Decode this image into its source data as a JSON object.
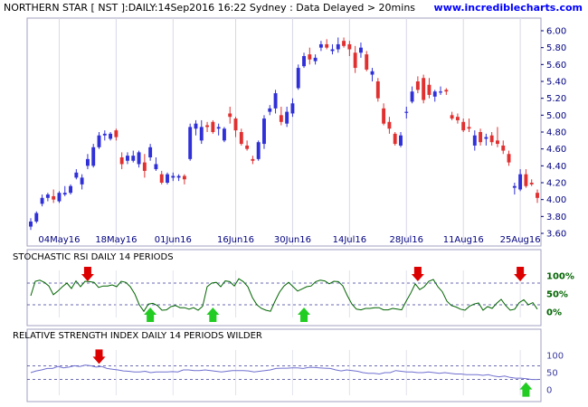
{
  "header": {
    "title": "NORTHERN STAR [ NST ]:DAILY:14Sep2016 16:22 Sydney : Data Delayed > 20mins",
    "site": "www.incrediblecharts.com"
  },
  "colors": {
    "up": "#3030d8",
    "down": "#e03030",
    "stochastic": "#006400",
    "rsi": "#7070d0",
    "buy_arrow": "#22cc22",
    "sell_arrow": "#dd0000"
  },
  "chart_data": [
    {
      "type": "candlestick",
      "title": "",
      "ylim": [
        3.45,
        6.15
      ],
      "y_ticks": [
        "6.00",
        "5.80",
        "5.60",
        "5.40",
        "5.20",
        "5.00",
        "4.80",
        "4.60",
        "4.40",
        "4.20",
        "4.00",
        "3.80",
        "3.60"
      ],
      "x_ticks": [
        "04May16",
        "18May16",
        "01Jun16",
        "16Jun16",
        "30Jun16",
        "14Jul16",
        "28Jul16",
        "11Aug16",
        "25Aug16"
      ],
      "x_tick_index": [
        5,
        15,
        25,
        36,
        46,
        56,
        66,
        76,
        86
      ],
      "ohlc": [
        [
          3.68,
          3.78,
          3.64,
          3.74
        ],
        [
          3.74,
          3.86,
          3.72,
          3.84
        ],
        [
          3.95,
          4.06,
          3.92,
          4.02
        ],
        [
          4.02,
          4.08,
          3.98,
          4.06
        ],
        [
          4.04,
          4.12,
          3.96,
          4.0
        ],
        [
          3.98,
          4.1,
          3.96,
          4.08
        ],
        [
          4.06,
          4.16,
          4.04,
          4.08
        ],
        [
          4.08,
          4.18,
          4.06,
          4.16
        ],
        [
          4.26,
          4.36,
          4.24,
          4.32
        ],
        [
          4.18,
          4.3,
          4.12,
          4.26
        ],
        [
          4.4,
          4.54,
          4.36,
          4.48
        ],
        [
          4.4,
          4.66,
          4.38,
          4.62
        ],
        [
          4.62,
          4.8,
          4.6,
          4.76
        ],
        [
          4.76,
          4.82,
          4.7,
          4.78
        ],
        [
          4.72,
          4.8,
          4.7,
          4.78
        ],
        [
          4.82,
          4.84,
          4.7,
          4.74
        ],
        [
          4.5,
          4.56,
          4.36,
          4.42
        ],
        [
          4.46,
          4.56,
          4.42,
          4.52
        ],
        [
          4.46,
          4.58,
          4.44,
          4.52
        ],
        [
          4.42,
          4.58,
          4.38,
          4.56
        ],
        [
          4.44,
          4.54,
          4.26,
          4.34
        ],
        [
          4.5,
          4.66,
          4.46,
          4.62
        ],
        [
          4.36,
          4.5,
          4.34,
          4.42
        ],
        [
          4.3,
          4.34,
          4.18,
          4.2
        ],
        [
          4.2,
          4.32,
          4.18,
          4.3
        ],
        [
          4.26,
          4.32,
          4.22,
          4.28
        ],
        [
          4.26,
          4.3,
          4.22,
          4.28
        ],
        [
          4.28,
          4.3,
          4.18,
          4.24
        ],
        [
          4.48,
          4.9,
          4.46,
          4.86
        ],
        [
          4.84,
          4.94,
          4.76,
          4.9
        ],
        [
          4.7,
          4.94,
          4.66,
          4.86
        ],
        [
          4.88,
          4.92,
          4.8,
          4.86
        ],
        [
          4.92,
          4.94,
          4.78,
          4.8
        ],
        [
          4.84,
          4.9,
          4.76,
          4.86
        ],
        [
          4.7,
          4.86,
          4.68,
          4.84
        ],
        [
          5.02,
          5.1,
          4.9,
          4.98
        ],
        [
          4.96,
          4.98,
          4.74,
          4.82
        ],
        [
          4.8,
          4.84,
          4.64,
          4.66
        ],
        [
          4.64,
          4.7,
          4.58,
          4.6
        ],
        [
          4.48,
          4.52,
          4.42,
          4.46
        ],
        [
          4.48,
          4.7,
          4.46,
          4.68
        ],
        [
          4.66,
          5.0,
          4.6,
          4.96
        ],
        [
          5.04,
          5.12,
          5.0,
          5.08
        ],
        [
          5.08,
          5.3,
          5.02,
          5.26
        ],
        [
          5.0,
          5.1,
          4.88,
          4.92
        ],
        [
          4.9,
          5.1,
          4.86,
          5.04
        ],
        [
          5.02,
          5.2,
          4.98,
          5.14
        ],
        [
          5.32,
          5.6,
          5.3,
          5.56
        ],
        [
          5.58,
          5.74,
          5.56,
          5.7
        ],
        [
          5.72,
          5.8,
          5.6,
          5.66
        ],
        [
          5.64,
          5.72,
          5.6,
          5.68
        ],
        [
          5.8,
          5.88,
          5.76,
          5.84
        ],
        [
          5.84,
          5.9,
          5.78,
          5.8
        ],
        [
          5.76,
          5.84,
          5.72,
          5.78
        ],
        [
          5.78,
          5.92,
          5.74,
          5.84
        ],
        [
          5.88,
          5.92,
          5.8,
          5.82
        ],
        [
          5.84,
          5.88,
          5.7,
          5.78
        ],
        [
          5.74,
          5.82,
          5.5,
          5.56
        ],
        [
          5.74,
          5.86,
          5.68,
          5.8
        ],
        [
          5.72,
          5.76,
          5.52,
          5.54
        ],
        [
          5.48,
          5.56,
          5.4,
          5.52
        ],
        [
          5.4,
          5.44,
          5.16,
          5.2
        ],
        [
          5.08,
          5.14,
          4.88,
          4.9
        ],
        [
          4.92,
          4.98,
          4.78,
          4.84
        ],
        [
          4.78,
          4.8,
          4.64,
          4.66
        ],
        [
          4.64,
          4.8,
          4.62,
          4.76
        ],
        [
          5.04,
          5.1,
          4.96,
          5.04
        ],
        [
          5.16,
          5.34,
          5.14,
          5.28
        ],
        [
          5.4,
          5.46,
          5.26,
          5.3
        ],
        [
          5.44,
          5.48,
          5.14,
          5.18
        ],
        [
          5.36,
          5.44,
          5.2,
          5.24
        ],
        [
          5.22,
          5.3,
          5.16,
          5.28
        ],
        [
          5.28,
          5.34,
          5.24,
          5.28
        ],
        [
          5.3,
          5.32,
          5.24,
          5.28
        ],
        [
          5.0,
          5.04,
          4.94,
          4.96
        ],
        [
          4.98,
          5.02,
          4.9,
          4.94
        ],
        [
          4.92,
          4.96,
          4.8,
          4.82
        ],
        [
          4.86,
          4.96,
          4.8,
          4.84
        ],
        [
          4.64,
          4.82,
          4.58,
          4.76
        ],
        [
          4.8,
          4.84,
          4.64,
          4.68
        ],
        [
          4.72,
          4.78,
          4.64,
          4.74
        ],
        [
          4.76,
          4.8,
          4.64,
          4.68
        ],
        [
          4.7,
          4.86,
          4.62,
          4.66
        ],
        [
          4.64,
          4.7,
          4.54,
          4.58
        ],
        [
          4.54,
          4.58,
          4.4,
          4.44
        ],
        [
          4.14,
          4.2,
          4.06,
          4.16
        ],
        [
          4.12,
          4.36,
          4.1,
          4.3
        ],
        [
          4.3,
          4.36,
          4.14,
          4.16
        ],
        [
          4.2,
          4.24,
          4.16,
          4.18
        ],
        [
          4.08,
          4.12,
          3.96,
          4.02
        ]
      ]
    },
    {
      "type": "line",
      "title": "STOCHASTIC RSI DAILY 14 PERIODS",
      "ylim": [
        0,
        100
      ],
      "y_ticks": [
        "100%",
        "50%",
        "0%"
      ],
      "overbought": 80,
      "oversold": 20,
      "series": [
        {
          "name": "",
          "values": [
            45,
            85,
            88,
            82,
            72,
            48,
            58,
            70,
            80,
            65,
            86,
            70,
            85,
            84,
            82,
            68,
            72,
            72,
            75,
            70,
            85,
            82,
            70,
            50,
            20,
            2,
            22,
            24,
            18,
            5,
            6,
            15,
            18,
            12,
            12,
            8,
            12,
            5,
            16,
            70,
            80,
            82,
            70,
            86,
            84,
            72,
            92,
            84,
            70,
            40,
            20,
            10,
            5,
            2,
            30,
            55,
            72,
            82,
            70,
            58,
            64,
            70,
            72,
            84,
            88,
            86,
            78,
            85,
            84,
            72,
            45,
            22,
            8,
            6,
            10,
            10,
            12,
            12,
            6,
            6,
            10,
            8,
            6,
            30,
            52,
            78,
            62,
            70,
            85,
            90,
            70,
            56,
            30,
            18,
            14,
            8,
            5,
            16,
            22,
            25,
            5,
            15,
            10,
            24,
            35,
            18,
            5,
            8,
            26,
            34,
            20,
            26,
            8
          ]
        }
      ],
      "sell_signals": [
        10,
        68,
        86
      ],
      "buy_signals": [
        21,
        32,
        48
      ]
    },
    {
      "type": "line",
      "title": "RELATIVE STRENGTH INDEX DAILY 14 PERIODS WILDER",
      "ylim": [
        0,
        100
      ],
      "y_ticks": [
        "100",
        "50",
        "0"
      ],
      "overbought": 70,
      "oversold": 30,
      "series": [
        {
          "name": "",
          "values": [
            50,
            55,
            58,
            62,
            62,
            68,
            64,
            66,
            70,
            68,
            72,
            70,
            66,
            68,
            62,
            60,
            58,
            55,
            54,
            52,
            52,
            54,
            50,
            52,
            52,
            52,
            53,
            52,
            58,
            58,
            56,
            56,
            58,
            56,
            54,
            52,
            54,
            56,
            56,
            56,
            55,
            52,
            54,
            56,
            58,
            62,
            63,
            63,
            64,
            64,
            62,
            65,
            65,
            64,
            63,
            62,
            58,
            55,
            58,
            56,
            54,
            50,
            48,
            48,
            46,
            50,
            50,
            56,
            54,
            52,
            52,
            50,
            50,
            52,
            50,
            48,
            50,
            48,
            46,
            46,
            44,
            44,
            44,
            42,
            44,
            40,
            38,
            40,
            36,
            34,
            34,
            32,
            30,
            30
          ]
        }
      ],
      "sell_signals": [
        12
      ],
      "buy_signals": [
        87
      ]
    }
  ]
}
